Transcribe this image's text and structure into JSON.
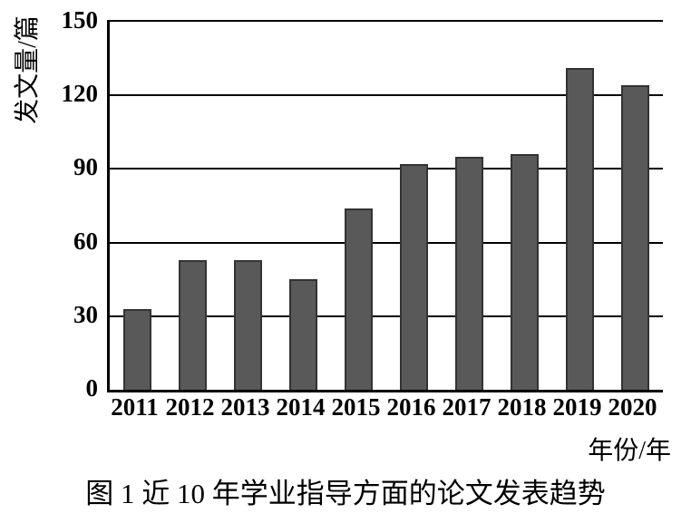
{
  "figure": {
    "caption": "图 1  近 10 年学业指导方面的论文发表趋势"
  },
  "chart_data": {
    "type": "bar",
    "title": "",
    "categories": [
      "2011",
      "2012",
      "2013",
      "2014",
      "2015",
      "2016",
      "2017",
      "2018",
      "2019",
      "2020"
    ],
    "values": [
      33,
      53,
      53,
      45,
      74,
      92,
      95,
      96,
      131,
      124
    ],
    "xlabel": "年份/年",
    "ylabel": "发文量/篇",
    "ylim": [
      0,
      150
    ],
    "yticks": [
      0,
      30,
      60,
      90,
      120,
      150
    ],
    "grid": true,
    "legend": "none",
    "bar_color": "#595959",
    "bar_border_color": "#333333",
    "axis_color": "#000000"
  }
}
